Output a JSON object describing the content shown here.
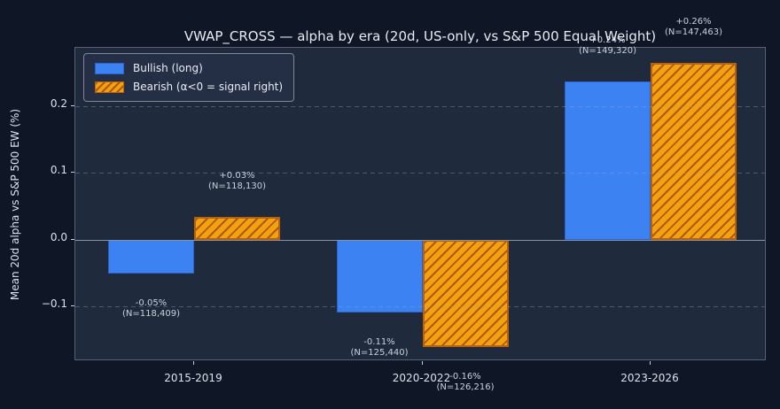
{
  "chart_data": {
    "type": "bar",
    "title": "VWAP_CROSS — alpha by era (20d, US-only, vs S&P 500 Equal Weight)",
    "ylabel": "Mean 20d alpha vs S&P 500 EW (%)",
    "xlabel": "",
    "categories": [
      "2015-2019",
      "2020-2022",
      "2023-2026"
    ],
    "series": [
      {
        "name": "Bullish (long)",
        "color": "#3d82f2",
        "style": "solid",
        "values": [
          -0.05,
          -0.109,
          0.237
        ],
        "value_labels": [
          "-0.05%",
          "-0.11%",
          "+0.24%"
        ],
        "n_labels": [
          "(N=118,409)",
          "(N=125,440)",
          "(N=149,320)"
        ]
      },
      {
        "name": "Bearish (α<0 = signal right)",
        "color": "#f4a00f",
        "style": "hatched",
        "hatch_color": "#a85c10",
        "values": [
          0.034,
          -0.16,
          0.265
        ],
        "value_labels": [
          "+0.03%",
          "-0.16%",
          "+0.26%"
        ],
        "n_labels": [
          "(N=118,130)",
          "(N=126,216)",
          "(N=147,463)"
        ]
      }
    ],
    "yticks": [
      -0.1,
      0.0,
      0.1,
      0.2
    ],
    "ytick_labels": [
      "−0.1",
      "0.0",
      "0.1",
      "0.2"
    ],
    "ylim": [
      -0.183,
      0.287
    ],
    "grid": "dashed-horizontal",
    "zero_line": true,
    "legend_position": "upper-left"
  },
  "colors": {
    "figure_bg": "#0f1726",
    "axes_bg": "#1f2a3c",
    "spine": "#55617a",
    "grid": "#94a3b8",
    "zero_line": "#8793a6",
    "title_text": "#e6ebf2",
    "tick_text": "#dce2ea",
    "annotation_text": "#c9d1dc",
    "bullish_blue": "#3d82f2",
    "bearish_orange": "#f4a00f",
    "hatch_stroke": "#a85c10"
  }
}
